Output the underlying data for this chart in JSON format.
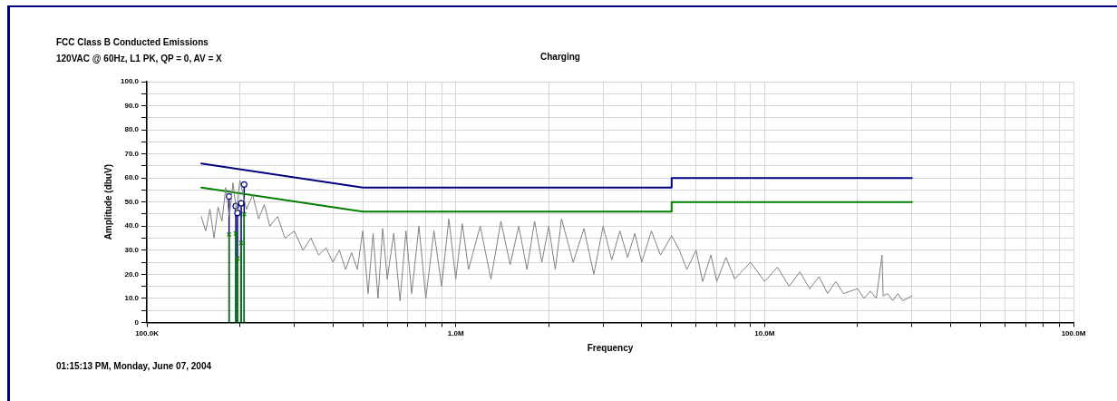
{
  "chart_data": {
    "type": "line",
    "title": "FCC Class B Conducted Emissions",
    "subtitle": "120VAC @ 60Hz, L1 PK, QP = 0, AV = X",
    "xlabel": "Frequency",
    "ylabel": "Amplitude (dbuV)",
    "annotations": [
      "Charging",
      "01:15:13 PM, Monday, June 07, 2004"
    ],
    "log": "x",
    "grid": true,
    "legend": false,
    "xlim": [
      100000,
      100000000
    ],
    "xticks": [
      {
        "value": 100000,
        "label": "100.0K"
      },
      {
        "value": 200000,
        "label": null
      },
      {
        "value": 300000,
        "label": null
      },
      {
        "value": 400000,
        "label": null
      },
      {
        "value": 500000,
        "label": null
      },
      {
        "value": 600000,
        "label": null
      },
      {
        "value": 700000,
        "label": null
      },
      {
        "value": 800000,
        "label": null
      },
      {
        "value": 900000,
        "label": null
      },
      {
        "value": 1000000,
        "label": "1.0M"
      },
      {
        "value": 2000000,
        "label": null
      },
      {
        "value": 3000000,
        "label": null
      },
      {
        "value": 4000000,
        "label": null
      },
      {
        "value": 5000000,
        "label": null
      },
      {
        "value": 6000000,
        "label": null
      },
      {
        "value": 7000000,
        "label": null
      },
      {
        "value": 8000000,
        "label": null
      },
      {
        "value": 9000000,
        "label": null
      },
      {
        "value": 10000000,
        "label": "10.0M"
      },
      {
        "value": 20000000,
        "label": null
      },
      {
        "value": 30000000,
        "label": null
      },
      {
        "value": 40000000,
        "label": null
      },
      {
        "value": 50000000,
        "label": null
      },
      {
        "value": 60000000,
        "label": null
      },
      {
        "value": 70000000,
        "label": null
      },
      {
        "value": 80000000,
        "label": null
      },
      {
        "value": 90000000,
        "label": null
      },
      {
        "value": 100000000,
        "label": "100.0M"
      }
    ],
    "ylim": [
      0,
      100
    ],
    "yticks": [
      0,
      {
        "value": 5,
        "label": null
      },
      {
        "value": 10,
        "label": "10.0"
      },
      {
        "value": 15,
        "label": null
      },
      {
        "value": 20,
        "label": "20.0"
      },
      {
        "value": 25,
        "label": null
      },
      {
        "value": 30,
        "label": "30.0"
      },
      {
        "value": 35,
        "label": null
      },
      {
        "value": 40,
        "label": "40.0"
      },
      {
        "value": 45,
        "label": null
      },
      {
        "value": 50,
        "label": "50.0"
      },
      {
        "value": 55,
        "label": null
      },
      {
        "value": 60,
        "label": "60.0"
      },
      {
        "value": 65,
        "label": null
      },
      {
        "value": 70,
        "label": "70.0"
      },
      {
        "value": 75,
        "label": null
      },
      {
        "value": 80,
        "label": "80.0"
      },
      {
        "value": 85,
        "label": null
      },
      {
        "value": 90,
        "label": "90.0"
      },
      {
        "value": 95,
        "label": null
      },
      {
        "value": 100,
        "label": "100.0"
      }
    ],
    "series": [
      {
        "type": "line",
        "color": "#808080",
        "marker": "none",
        "x": [
          150000,
          155000,
          160000,
          165000,
          170000,
          175000,
          180000,
          185000,
          190000,
          195000,
          200000,
          210000,
          220000,
          230000,
          240000,
          250000,
          265000,
          280000,
          300000,
          320000,
          340000,
          360000,
          380000,
          400000,
          420000,
          440000,
          460000,
          480000,
          500000,
          520000,
          540000,
          560000,
          580000,
          600000,
          630000,
          660000,
          690000,
          720000,
          760000,
          800000,
          850000,
          900000,
          950000,
          1000000,
          1050000,
          1100000,
          1200000,
          1300000,
          1400000,
          1500000,
          1600000,
          1700000,
          1800000,
          1900000,
          2000000,
          2100000,
          2200000,
          2400000,
          2600000,
          2800000,
          3000000,
          3200000,
          3400000,
          3600000,
          3800000,
          4000000,
          4300000,
          4600000,
          5000000,
          5300000,
          5600000,
          6000000,
          6300000,
          6700000,
          7000000,
          7500000,
          8000000,
          9000000,
          10000000,
          11000000,
          12000000,
          13000000,
          14000000,
          15000000,
          16000000,
          17000000,
          18000000,
          20000000,
          21000000,
          22000000,
          23000000,
          24000000,
          24200000,
          25000000,
          26000000,
          27000000,
          28000000,
          30000000
        ],
        "values": [
          44,
          38,
          47,
          35,
          48,
          42,
          56,
          44,
          58,
          46,
          59,
          47,
          53,
          43,
          49,
          40,
          44,
          35,
          38,
          30,
          35,
          28,
          31,
          25,
          30,
          22,
          29,
          22,
          38,
          12,
          37,
          10,
          39,
          18,
          37,
          9,
          38,
          12,
          40,
          10,
          38,
          15,
          43,
          18,
          41,
          22,
          40,
          18,
          42,
          24,
          40,
          22,
          42,
          25,
          40,
          22,
          43,
          25,
          39,
          20,
          40,
          26,
          38,
          27,
          37,
          25,
          38,
          28,
          36,
          30,
          22,
          30,
          17,
          28,
          17,
          27,
          18,
          25,
          17,
          23,
          15,
          21,
          14,
          19,
          12,
          17,
          12,
          14,
          10,
          13,
          10,
          28,
          11,
          12,
          9,
          12,
          9,
          11
        ]
      },
      {
        "type": "line",
        "color": "#000080",
        "marker": "none",
        "x": [
          150000,
          500000,
          5000000,
          5000000,
          30000000
        ],
        "values": [
          66,
          56,
          56,
          60,
          60
        ]
      },
      {
        "type": "line",
        "color": "#008000",
        "marker": "none",
        "x": [
          150000,
          500000,
          5000000,
          5000000,
          30000000
        ],
        "values": [
          56,
          46,
          46,
          50,
          50
        ]
      },
      {
        "type": "lollipop",
        "color": "#000080",
        "marker": "circle",
        "x": [
          184500,
          194000,
          196500,
          202000,
          206500
        ],
        "values": [
          52.3,
          48.3,
          45.5,
          49.5,
          57.3
        ]
      },
      {
        "type": "lollipop",
        "color": "#008000",
        "marker": "cross",
        "x": [
          184500,
          194000,
          196500,
          202000,
          206500
        ],
        "values": [
          36.5,
          37,
          26.5,
          33,
          45
        ]
      }
    ]
  }
}
